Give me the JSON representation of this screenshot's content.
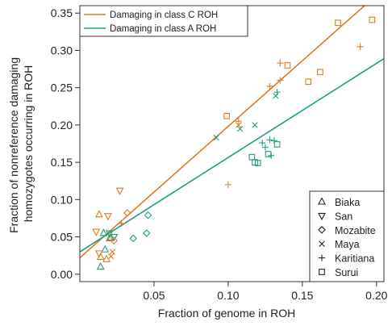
{
  "chart_data": {
    "type": "scatter",
    "xlabel": "Fraction of genome in ROH",
    "ylabel_lines": [
      "Fraction of nonreference damaging",
      "homozygotes occurring in ROH"
    ],
    "xlim": [
      0.0,
      0.205
    ],
    "ylim": [
      -0.01,
      0.36
    ],
    "x_ticks": [
      {
        "value": 0.05,
        "label": "0.05"
      },
      {
        "value": 0.1,
        "label": "0.10"
      },
      {
        "value": 0.15,
        "label": "0.15"
      },
      {
        "value": 0.2,
        "label": "0.20"
      }
    ],
    "y_ticks": [
      {
        "value": 0.0,
        "label": "0.00"
      },
      {
        "value": 0.05,
        "label": "0.05"
      },
      {
        "value": 0.1,
        "label": "0.10"
      },
      {
        "value": 0.15,
        "label": "0.15"
      },
      {
        "value": 0.2,
        "label": "0.20"
      },
      {
        "value": 0.25,
        "label": "0.25"
      },
      {
        "value": 0.3,
        "label": "0.30"
      },
      {
        "value": 0.35,
        "label": "0.35"
      }
    ],
    "grid": false,
    "colors": {
      "class_c": "#e07a22",
      "class_a": "#1a9e82",
      "axis": "#333333"
    },
    "fit_lines": [
      {
        "name": "Damaging in class C ROH",
        "color": "#e07a22",
        "x": [
          0.0,
          0.205
        ],
        "y": [
          0.022,
          0.383
        ]
      },
      {
        "name": "Damaging in class A ROH",
        "color": "#1a9e82",
        "x": [
          0.0,
          0.205
        ],
        "y": [
          0.03,
          0.289
        ]
      }
    ],
    "legend_lines_position": "top-left",
    "legend_markers_position": "bottom-right",
    "populations": [
      {
        "name": "Biaka",
        "marker": "triangle-up"
      },
      {
        "name": "San",
        "marker": "triangle-down"
      },
      {
        "name": "Mozabite",
        "marker": "diamond"
      },
      {
        "name": "Maya",
        "marker": "x"
      },
      {
        "name": "Karitiana",
        "marker": "plus"
      },
      {
        "name": "Surui",
        "marker": "square"
      }
    ],
    "points": [
      {
        "pop": "Biaka",
        "cls": "C",
        "x": 0.013,
        "y": 0.08
      },
      {
        "pop": "Biaka",
        "cls": "C",
        "x": 0.02,
        "y": 0.048
      },
      {
        "pop": "Biaka",
        "cls": "C",
        "x": 0.014,
        "y": 0.023
      },
      {
        "pop": "Biaka",
        "cls": "C",
        "x": 0.018,
        "y": 0.02
      },
      {
        "pop": "Biaka",
        "cls": "A",
        "x": 0.016,
        "y": 0.055
      },
      {
        "pop": "Biaka",
        "cls": "A",
        "x": 0.017,
        "y": 0.033
      },
      {
        "pop": "Biaka",
        "cls": "A",
        "x": 0.014,
        "y": 0.01
      },
      {
        "pop": "Biaka",
        "cls": "A",
        "x": 0.021,
        "y": 0.049
      },
      {
        "pop": "San",
        "cls": "C",
        "x": 0.011,
        "y": 0.057
      },
      {
        "pop": "San",
        "cls": "C",
        "x": 0.019,
        "y": 0.078
      },
      {
        "pop": "San",
        "cls": "C",
        "x": 0.027,
        "y": 0.112
      },
      {
        "pop": "San",
        "cls": "C",
        "x": 0.013,
        "y": 0.028
      },
      {
        "pop": "San",
        "cls": "A",
        "x": 0.02,
        "y": 0.055
      },
      {
        "pop": "San",
        "cls": "A",
        "x": 0.023,
        "y": 0.05
      },
      {
        "pop": "Mozabite",
        "cls": "C",
        "x": 0.032,
        "y": 0.082
      },
      {
        "pop": "Mozabite",
        "cls": "C",
        "x": 0.023,
        "y": 0.045
      },
      {
        "pop": "Mozabite",
        "cls": "A",
        "x": 0.046,
        "y": 0.079
      },
      {
        "pop": "Mozabite",
        "cls": "A",
        "x": 0.045,
        "y": 0.055
      },
      {
        "pop": "Mozabite",
        "cls": "A",
        "x": 0.036,
        "y": 0.048
      },
      {
        "pop": "Maya",
        "cls": "C",
        "x": 0.022,
        "y": 0.03
      },
      {
        "pop": "Maya",
        "cls": "C",
        "x": 0.021,
        "y": 0.024
      },
      {
        "pop": "Maya",
        "cls": "C",
        "x": 0.107,
        "y": 0.2
      },
      {
        "pop": "Maya",
        "cls": "A",
        "x": 0.092,
        "y": 0.183
      },
      {
        "pop": "Maya",
        "cls": "A",
        "x": 0.108,
        "y": 0.195
      },
      {
        "pop": "Maya",
        "cls": "A",
        "x": 0.118,
        "y": 0.2
      },
      {
        "pop": "Maya",
        "cls": "A",
        "x": 0.132,
        "y": 0.239
      },
      {
        "pop": "Karitiana",
        "cls": "C",
        "x": 0.028,
        "y": 0.068
      },
      {
        "pop": "Karitiana",
        "cls": "C",
        "x": 0.107,
        "y": 0.205
      },
      {
        "pop": "Karitiana",
        "cls": "C",
        "x": 0.1,
        "y": 0.12
      },
      {
        "pop": "Karitiana",
        "cls": "C",
        "x": 0.128,
        "y": 0.252
      },
      {
        "pop": "Karitiana",
        "cls": "C",
        "x": 0.135,
        "y": 0.26
      },
      {
        "pop": "Karitiana",
        "cls": "C",
        "x": 0.135,
        "y": 0.283
      },
      {
        "pop": "Karitiana",
        "cls": "C",
        "x": 0.189,
        "y": 0.305
      },
      {
        "pop": "Karitiana",
        "cls": "A",
        "x": 0.123,
        "y": 0.176
      },
      {
        "pop": "Karitiana",
        "cls": "A",
        "x": 0.125,
        "y": 0.17
      },
      {
        "pop": "Karitiana",
        "cls": "A",
        "x": 0.128,
        "y": 0.18
      },
      {
        "pop": "Karitiana",
        "cls": "A",
        "x": 0.129,
        "y": 0.159
      },
      {
        "pop": "Karitiana",
        "cls": "A",
        "x": 0.131,
        "y": 0.179
      },
      {
        "pop": "Karitiana",
        "cls": "A",
        "x": 0.133,
        "y": 0.244
      },
      {
        "pop": "Surui",
        "cls": "C",
        "x": 0.099,
        "y": 0.212
      },
      {
        "pop": "Surui",
        "cls": "C",
        "x": 0.14,
        "y": 0.28
      },
      {
        "pop": "Surui",
        "cls": "C",
        "x": 0.154,
        "y": 0.258
      },
      {
        "pop": "Surui",
        "cls": "C",
        "x": 0.162,
        "y": 0.271
      },
      {
        "pop": "Surui",
        "cls": "C",
        "x": 0.174,
        "y": 0.337
      },
      {
        "pop": "Surui",
        "cls": "C",
        "x": 0.197,
        "y": 0.341
      },
      {
        "pop": "Surui",
        "cls": "A",
        "x": 0.116,
        "y": 0.157
      },
      {
        "pop": "Surui",
        "cls": "A",
        "x": 0.118,
        "y": 0.15
      },
      {
        "pop": "Surui",
        "cls": "A",
        "x": 0.12,
        "y": 0.149
      },
      {
        "pop": "Surui",
        "cls": "A",
        "x": 0.127,
        "y": 0.161
      },
      {
        "pop": "Surui",
        "cls": "A",
        "x": 0.133,
        "y": 0.174
      }
    ]
  }
}
